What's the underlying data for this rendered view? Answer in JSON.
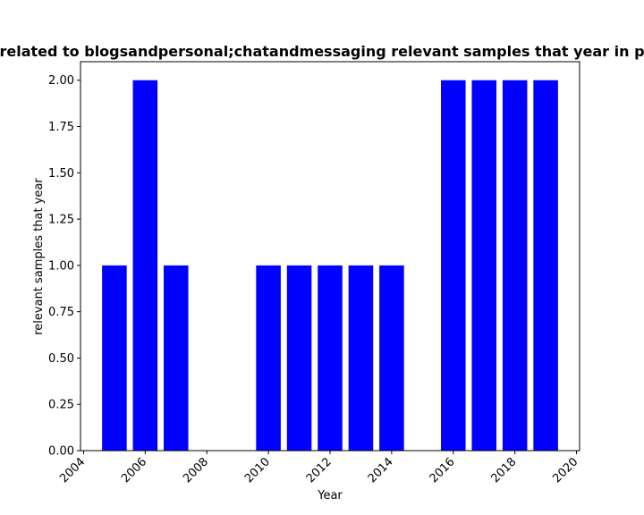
{
  "chart_data": {
    "type": "bar",
    "title": "related to blogsandpersonal;chatandmessaging relevant samples that year in p",
    "xlabel": "Year",
    "ylabel": "relevant samples that year",
    "x": [
      2005,
      2006,
      2007,
      2010,
      2011,
      2012,
      2013,
      2014,
      2016,
      2017,
      2018,
      2019
    ],
    "values": [
      1,
      2,
      1,
      1,
      1,
      1,
      1,
      1,
      2,
      2,
      2,
      2
    ],
    "xlim": [
      2003.9,
      2020.1
    ],
    "ylim": [
      0,
      2.1
    ],
    "x_ticks": [
      "2004",
      "2006",
      "2008",
      "2010",
      "2012",
      "2014",
      "2016",
      "2018",
      "2020"
    ],
    "y_ticks": [
      "0.00",
      "0.25",
      "0.50",
      "0.75",
      "1.00",
      "1.25",
      "1.50",
      "1.75",
      "2.00"
    ],
    "bar_color": "#0000ff",
    "grid": false,
    "legend": "none"
  }
}
